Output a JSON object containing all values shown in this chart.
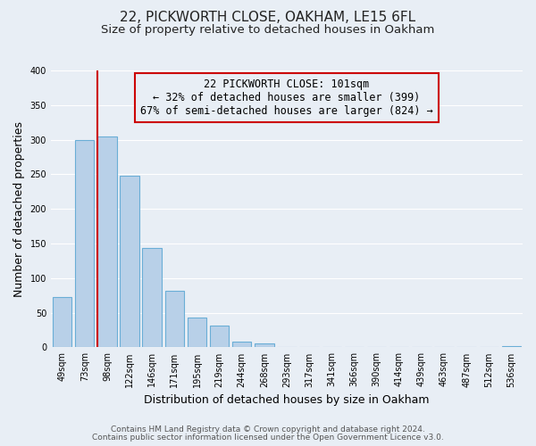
{
  "title": "22, PICKWORTH CLOSE, OAKHAM, LE15 6FL",
  "subtitle": "Size of property relative to detached houses in Oakham",
  "xlabel": "Distribution of detached houses by size in Oakham",
  "ylabel": "Number of detached properties",
  "bar_labels": [
    "49sqm",
    "73sqm",
    "98sqm",
    "122sqm",
    "146sqm",
    "171sqm",
    "195sqm",
    "219sqm",
    "244sqm",
    "268sqm",
    "293sqm",
    "317sqm",
    "341sqm",
    "366sqm",
    "390sqm",
    "414sqm",
    "439sqm",
    "463sqm",
    "487sqm",
    "512sqm",
    "536sqm"
  ],
  "bar_values": [
    73,
    300,
    305,
    248,
    143,
    82,
    43,
    31,
    8,
    6,
    0,
    0,
    0,
    0,
    0,
    1,
    0,
    0,
    0,
    0,
    2
  ],
  "bar_color": "#b8d0e8",
  "bar_edge_color": "#6aaed6",
  "highlight_line_color": "#cc0000",
  "ylim": [
    0,
    400
  ],
  "yticks": [
    0,
    50,
    100,
    150,
    200,
    250,
    300,
    350,
    400
  ],
  "annotation_title": "22 PICKWORTH CLOSE: 101sqm",
  "annotation_line1": "← 32% of detached houses are smaller (399)",
  "annotation_line2": "67% of semi-detached houses are larger (824) →",
  "annotation_box_edge": "#cc0000",
  "footer_line1": "Contains HM Land Registry data © Crown copyright and database right 2024.",
  "footer_line2": "Contains public sector information licensed under the Open Government Licence v3.0.",
  "background_color": "#e8eef5",
  "grid_color": "#ffffff",
  "title_fontsize": 11,
  "subtitle_fontsize": 9.5,
  "axis_label_fontsize": 9,
  "tick_fontsize": 7,
  "annotation_fontsize": 8.5,
  "footer_fontsize": 6.5
}
